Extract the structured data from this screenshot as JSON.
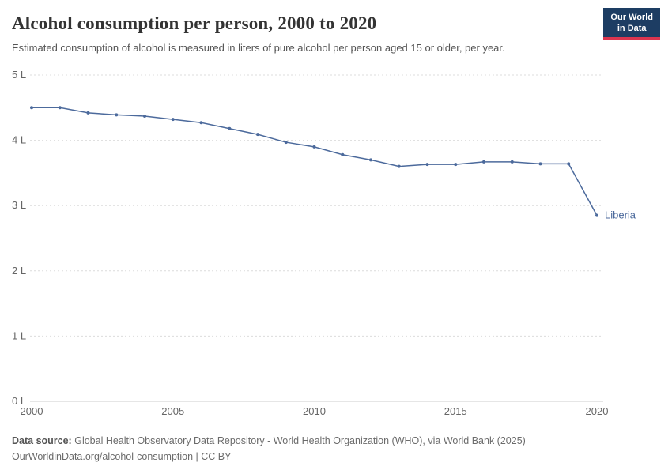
{
  "header": {
    "title": "Alcohol consumption per person, 2000 to 2020",
    "subtitle": "Estimated consumption of alcohol is measured in liters of pure alcohol per person aged 15 or older, per year.",
    "logo": {
      "line1": "Our World",
      "line2": "in Data"
    }
  },
  "colors": {
    "series": "#4C6A9C",
    "logo_bg": "#1d3d63",
    "logo_accent": "#dc354f",
    "grid": "#dcdcdc",
    "axis_text": "#666666"
  },
  "chart_data": {
    "type": "line",
    "title": "Alcohol consumption per person, 2000 to 2020",
    "xlabel": "",
    "ylabel": "",
    "xlim": [
      2000,
      2020
    ],
    "ylim": [
      0,
      5
    ],
    "grid": true,
    "legend_position": "end-of-line",
    "x_ticks": [
      2000,
      2005,
      2010,
      2015,
      2020
    ],
    "y_ticks": [
      {
        "value": 0,
        "label": "0 L"
      },
      {
        "value": 1,
        "label": "1 L"
      },
      {
        "value": 2,
        "label": "2 L"
      },
      {
        "value": 3,
        "label": "3 L"
      },
      {
        "value": 4,
        "label": "4 L"
      },
      {
        "value": 5,
        "label": "5 L"
      }
    ],
    "series": [
      {
        "name": "Liberia",
        "color": "#4C6A9C",
        "x": [
          2000,
          2001,
          2002,
          2003,
          2004,
          2005,
          2006,
          2007,
          2008,
          2009,
          2010,
          2011,
          2012,
          2013,
          2014,
          2015,
          2016,
          2017,
          2018,
          2019,
          2020
        ],
        "values": [
          4.5,
          4.5,
          4.42,
          4.39,
          4.37,
          4.32,
          4.27,
          4.18,
          4.09,
          3.97,
          3.9,
          3.78,
          3.7,
          3.6,
          3.63,
          3.63,
          3.67,
          3.67,
          3.64,
          3.64,
          2.85
        ]
      }
    ]
  },
  "footer": {
    "datasource_label": "Data source:",
    "datasource_text": "Global Health Observatory Data Repository - World Health Organization (WHO), via World Bank (2025)",
    "license_line": "OurWorldinData.org/alcohol-consumption | CC BY"
  }
}
